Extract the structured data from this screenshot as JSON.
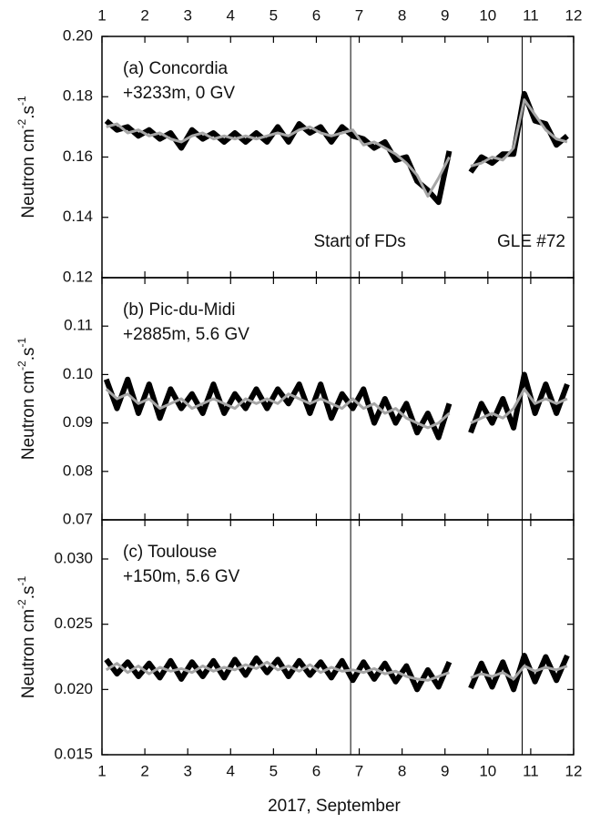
{
  "chart_data": [
    {
      "type": "line",
      "title": "(a) Concordia",
      "subtitle": "+3233m, 0 GV",
      "ylabel": [
        "Neutron cm",
        "-2",
        ".s",
        "-1"
      ],
      "xlim": [
        1,
        12
      ],
      "xticks": [
        1,
        2,
        3,
        4,
        5,
        6,
        7,
        8,
        9,
        10,
        11,
        12
      ],
      "xticklabel_position": "top",
      "ylim": [
        0.12,
        0.2
      ],
      "yticks": [
        0.12,
        0.14,
        0.16,
        0.18,
        {
          "value": 0.2,
          "label": "0.20"
        }
      ],
      "vlines": [
        6.8,
        10.8
      ],
      "annotations": [
        {
          "text": "Start of FDs",
          "x": 6.8
        },
        {
          "text": "GLE #72",
          "x": 10.8
        }
      ],
      "x": [
        1.1,
        1.35,
        1.6,
        1.85,
        2.1,
        2.35,
        2.6,
        2.85,
        3.1,
        3.35,
        3.6,
        3.85,
        4.1,
        4.35,
        4.6,
        4.85,
        5.1,
        5.35,
        5.6,
        5.85,
        6.1,
        6.35,
        6.6,
        6.85,
        7.1,
        7.35,
        7.6,
        7.85,
        8.1,
        8.35,
        8.6,
        8.85,
        9.1,
        9.35,
        9.6,
        9.85,
        10.1,
        10.35,
        10.6,
        10.85,
        11.1,
        11.35,
        11.6,
        11.85
      ],
      "series": [
        {
          "color": "#000000",
          "values": [
            0.172,
            0.169,
            0.17,
            0.167,
            0.169,
            0.166,
            0.168,
            0.163,
            0.169,
            0.166,
            0.168,
            0.165,
            0.168,
            0.165,
            0.168,
            0.165,
            0.17,
            0.165,
            0.171,
            0.168,
            0.17,
            0.165,
            0.17,
            0.167,
            0.166,
            0.163,
            0.165,
            0.159,
            0.16,
            0.152,
            0.149,
            0.145,
            0.162,
            null,
            0.155,
            0.16,
            0.158,
            0.161,
            0.161,
            0.181,
            0.172,
            0.171,
            0.164,
            0.167
          ]
        },
        {
          "color": "#a6a6a6",
          "values": [
            0.17,
            0.171,
            0.168,
            0.169,
            0.167,
            0.168,
            0.166,
            0.165,
            0.167,
            0.168,
            0.166,
            0.167,
            0.166,
            0.167,
            0.166,
            0.167,
            0.168,
            0.167,
            0.169,
            0.17,
            0.168,
            0.167,
            0.168,
            0.169,
            0.164,
            0.165,
            0.163,
            0.161,
            0.158,
            0.154,
            0.147,
            0.153,
            0.16,
            null,
            0.157,
            0.158,
            0.16,
            0.159,
            0.163,
            0.179,
            0.174,
            0.169,
            0.166,
            0.165
          ]
        }
      ]
    },
    {
      "type": "line",
      "title": "(b) Pic-du-Midi",
      "subtitle": "+2885m, 5.6 GV",
      "ylabel": [
        "Neutron cm",
        "-2",
        ".s",
        "-1"
      ],
      "xlim": [
        1,
        12
      ],
      "xticks": [
        1,
        2,
        3,
        4,
        5,
        6,
        7,
        8,
        9,
        10,
        11,
        12
      ],
      "ylim": [
        0.07,
        0.12
      ],
      "yticks": [
        0.07,
        0.08,
        0.09,
        {
          "value": 0.1,
          "label": "0.10"
        },
        0.11
      ],
      "vlines": [
        6.8,
        10.8
      ],
      "x": [
        1.1,
        1.35,
        1.6,
        1.85,
        2.1,
        2.35,
        2.6,
        2.85,
        3.1,
        3.35,
        3.6,
        3.85,
        4.1,
        4.35,
        4.6,
        4.85,
        5.1,
        5.35,
        5.6,
        5.85,
        6.1,
        6.35,
        6.6,
        6.85,
        7.1,
        7.35,
        7.6,
        7.85,
        8.1,
        8.35,
        8.6,
        8.85,
        9.1,
        9.35,
        9.6,
        9.85,
        10.1,
        10.35,
        10.6,
        10.85,
        11.1,
        11.35,
        11.6,
        11.85
      ],
      "series": [
        {
          "color": "#000000",
          "values": [
            0.099,
            0.093,
            0.099,
            0.092,
            0.098,
            0.091,
            0.097,
            0.093,
            0.096,
            0.092,
            0.098,
            0.092,
            0.096,
            0.093,
            0.097,
            0.093,
            0.097,
            0.094,
            0.098,
            0.092,
            0.098,
            0.091,
            0.096,
            0.093,
            0.097,
            0.09,
            0.095,
            0.09,
            0.094,
            0.088,
            0.092,
            0.087,
            0.094,
            null,
            0.088,
            0.094,
            0.09,
            0.095,
            0.089,
            0.1,
            0.092,
            0.098,
            0.092,
            0.098
          ]
        },
        {
          "color": "#a6a6a6",
          "values": [
            0.097,
            0.095,
            0.096,
            0.094,
            0.095,
            0.093,
            0.094,
            0.095,
            0.093,
            0.094,
            0.095,
            0.094,
            0.093,
            0.095,
            0.094,
            0.095,
            0.094,
            0.096,
            0.095,
            0.094,
            0.095,
            0.094,
            0.093,
            0.095,
            0.093,
            0.094,
            0.092,
            0.093,
            0.091,
            0.09,
            0.089,
            0.09,
            0.092,
            null,
            0.09,
            0.091,
            0.092,
            0.091,
            0.093,
            0.097,
            0.094,
            0.095,
            0.094,
            0.095
          ]
        }
      ]
    },
    {
      "type": "line",
      "title": "(c) Toulouse",
      "subtitle": "+150m, 5.6 GV",
      "ylabel": [
        "Neutron cm",
        "-2",
        ".s",
        "-1"
      ],
      "xlabel": "2017, September",
      "xlim": [
        1,
        12
      ],
      "xticks": [
        1,
        2,
        3,
        4,
        5,
        6,
        7,
        8,
        9,
        10,
        11,
        12
      ],
      "xticklabel_position": "bottom",
      "ylim": [
        0.015,
        0.033
      ],
      "yticks": [
        0.015,
        {
          "value": 0.02,
          "label": "0.020"
        },
        0.025,
        {
          "value": 0.03,
          "label": "0.030"
        }
      ],
      "vlines": [
        6.8,
        10.8
      ],
      "x": [
        1.1,
        1.35,
        1.6,
        1.85,
        2.1,
        2.35,
        2.6,
        2.85,
        3.1,
        3.35,
        3.6,
        3.85,
        4.1,
        4.35,
        4.6,
        4.85,
        5.1,
        5.35,
        5.6,
        5.85,
        6.1,
        6.35,
        6.6,
        6.85,
        7.1,
        7.35,
        7.6,
        7.85,
        8.1,
        8.35,
        8.6,
        8.85,
        9.1,
        9.35,
        9.6,
        9.85,
        10.1,
        10.35,
        10.6,
        10.85,
        11.1,
        11.35,
        11.6,
        11.85
      ],
      "series": [
        {
          "color": "#000000",
          "values": [
            0.0223,
            0.0212,
            0.0221,
            0.021,
            0.022,
            0.0209,
            0.0222,
            0.0208,
            0.0221,
            0.021,
            0.0222,
            0.0209,
            0.0223,
            0.0211,
            0.0224,
            0.0213,
            0.0223,
            0.021,
            0.0222,
            0.0211,
            0.0221,
            0.0209,
            0.0222,
            0.0207,
            0.0221,
            0.0208,
            0.022,
            0.0206,
            0.0218,
            0.02,
            0.0215,
            0.0202,
            0.0221,
            null,
            0.0201,
            0.022,
            0.0202,
            0.0221,
            0.02,
            0.0226,
            0.0206,
            0.0225,
            0.0207,
            0.0226
          ]
        },
        {
          "color": "#a6a6a6",
          "values": [
            0.0215,
            0.022,
            0.0213,
            0.0218,
            0.0212,
            0.0217,
            0.0214,
            0.0216,
            0.0213,
            0.0218,
            0.0214,
            0.0217,
            0.0215,
            0.0219,
            0.0216,
            0.0221,
            0.0215,
            0.0218,
            0.0214,
            0.0219,
            0.0213,
            0.0217,
            0.0214,
            0.0215,
            0.0213,
            0.0216,
            0.0212,
            0.0214,
            0.021,
            0.0208,
            0.0207,
            0.021,
            0.0213,
            null,
            0.0209,
            0.0212,
            0.021,
            0.0213,
            0.0208,
            0.0218,
            0.0214,
            0.0217,
            0.0215,
            0.0218
          ]
        }
      ]
    }
  ]
}
